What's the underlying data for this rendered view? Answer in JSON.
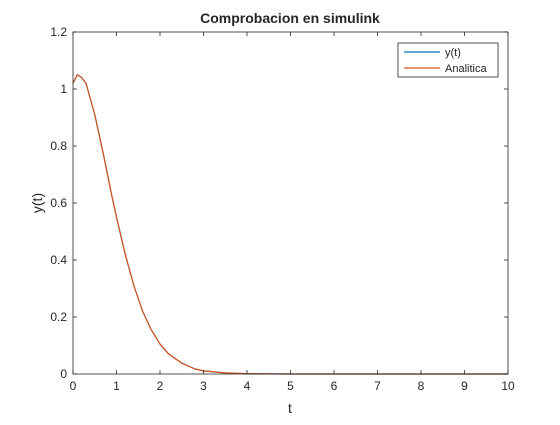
{
  "chart_data": {
    "type": "line",
    "title": "Comprobacion en simulink",
    "xlabel": "t",
    "ylabel": "y(t)",
    "xlim": [
      0,
      10
    ],
    "ylim": [
      0,
      1.2
    ],
    "xticks": [
      0,
      1,
      2,
      3,
      4,
      5,
      6,
      7,
      8,
      9,
      10
    ],
    "xtick_labels": [
      "0",
      "1",
      "2",
      "3",
      "4",
      "5",
      "6",
      "7",
      "8",
      "9",
      "10"
    ],
    "yticks": [
      0,
      0.2,
      0.4,
      0.6,
      0.8,
      1,
      1.2
    ],
    "ytick_labels": [
      "0",
      "0.2",
      "0.4",
      "0.6",
      "0.8",
      "1",
      "1.2"
    ],
    "grid": false,
    "legend_position": "top-right",
    "series": [
      {
        "name": "y(t)",
        "color": "#0072BD",
        "x": [
          0,
          0.1,
          0.2,
          0.3,
          0.5,
          0.7,
          0.9,
          1.0,
          1.2,
          1.4,
          1.6,
          1.8,
          2.0,
          2.2,
          2.5,
          2.8,
          3.0,
          3.5,
          4.0,
          5.0,
          6.0,
          7.0,
          8.0,
          9.0,
          10.0
        ],
        "y": [
          1.02,
          1.05,
          1.04,
          1.02,
          0.91,
          0.77,
          0.62,
          0.55,
          0.42,
          0.31,
          0.22,
          0.155,
          0.105,
          0.07,
          0.038,
          0.018,
          0.011,
          0.004,
          0.001,
          0,
          0,
          0,
          0,
          0,
          0
        ]
      },
      {
        "name": "Analitica",
        "color": "#D95319",
        "x": [
          0,
          0.1,
          0.2,
          0.3,
          0.5,
          0.7,
          0.9,
          1.0,
          1.2,
          1.4,
          1.6,
          1.8,
          2.0,
          2.2,
          2.5,
          2.8,
          3.0,
          3.5,
          4.0,
          5.0,
          6.0,
          7.0,
          8.0,
          9.0,
          10.0
        ],
        "y": [
          1.02,
          1.05,
          1.04,
          1.02,
          0.91,
          0.77,
          0.62,
          0.55,
          0.42,
          0.31,
          0.22,
          0.155,
          0.105,
          0.07,
          0.038,
          0.018,
          0.011,
          0.004,
          0.001,
          0,
          0,
          0,
          0,
          0,
          0
        ]
      }
    ]
  }
}
